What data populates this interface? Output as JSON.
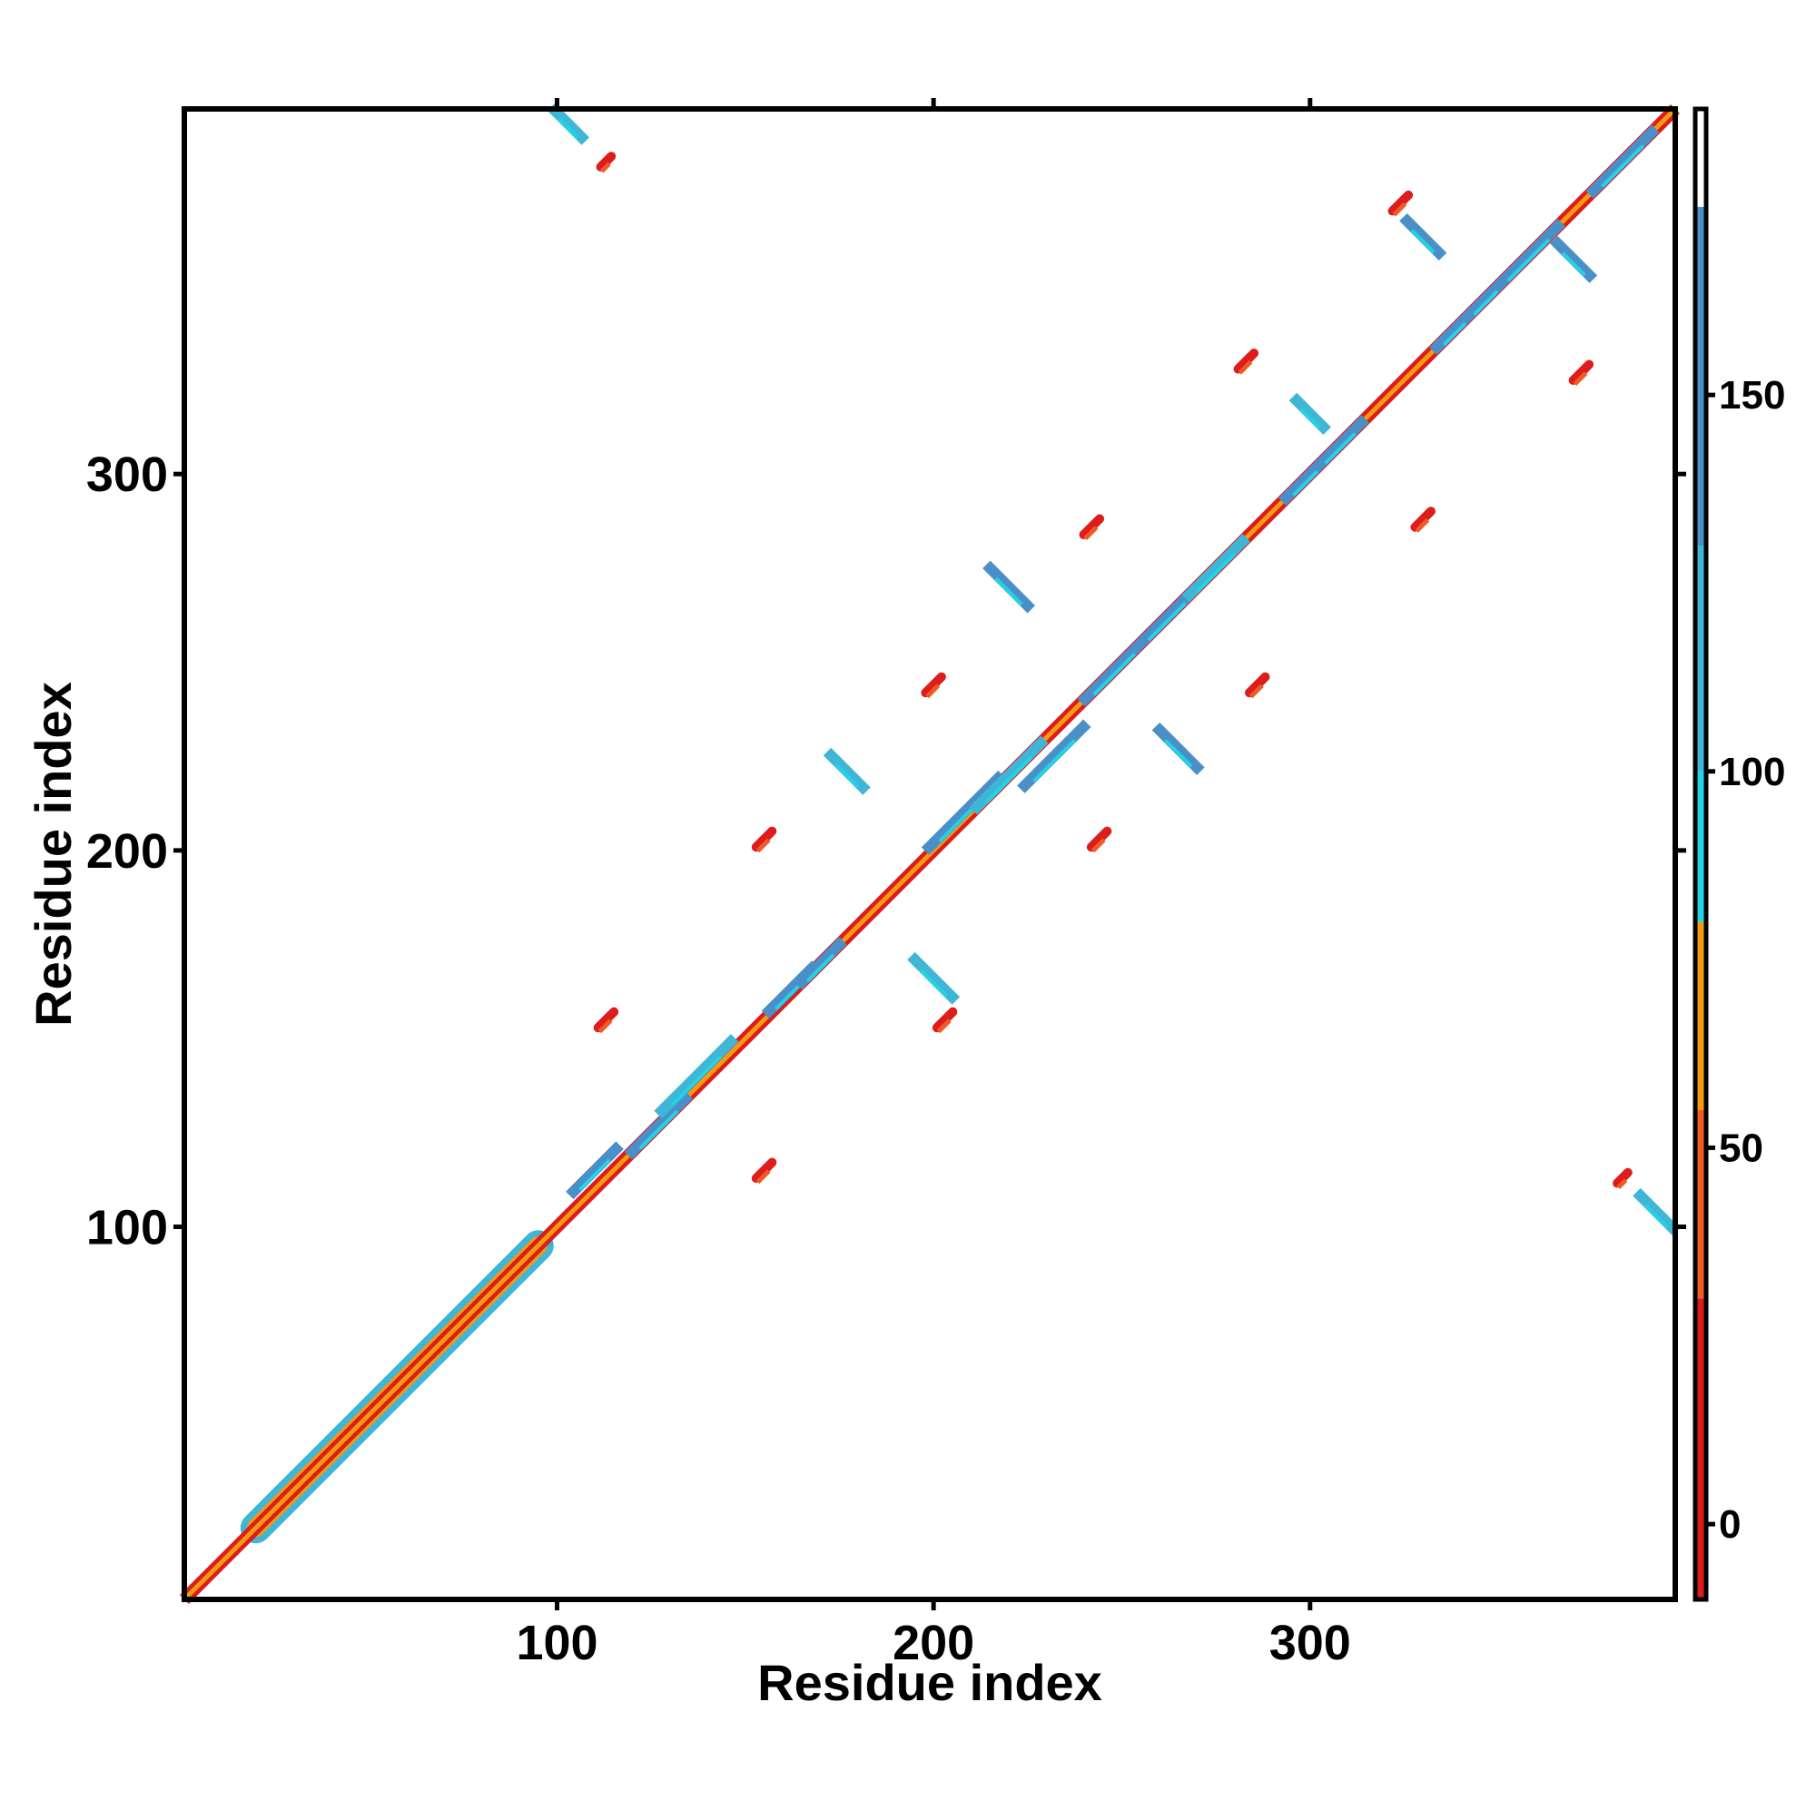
{
  "chart_data": {
    "type": "heatmap",
    "title": "",
    "xlabel": "Residue index",
    "ylabel": "Residue index",
    "xlim": [
      1,
      397
    ],
    "ylim": [
      1,
      397
    ],
    "x_ticks": [
      "100",
      "200",
      "300"
    ],
    "y_ticks": [
      "100",
      "200",
      "300"
    ],
    "grid": false,
    "legend": "colorbar-right",
    "colorbar": {
      "range": [
        -10,
        188
      ],
      "ticks": [
        "0",
        "50",
        "100",
        "150"
      ],
      "bands": [
        {
          "from": -10,
          "to": 30,
          "color": "#dd1c1c"
        },
        {
          "from": 30,
          "to": 55,
          "color": "#f15a24"
        },
        {
          "from": 55,
          "to": 80,
          "color": "#f39c12"
        },
        {
          "from": 80,
          "to": 100,
          "color": "#22d3e6"
        },
        {
          "from": 100,
          "to": 130,
          "color": "#3fb6d6"
        },
        {
          "from": 130,
          "to": 175,
          "color": "#4a8fc8"
        },
        {
          "from": 175,
          "to": 188,
          "color": "#ffffff"
        }
      ]
    },
    "diagonal": {
      "from": 1,
      "to": 397,
      "center_color": "#f39c12",
      "edge_color": "#dd1c1c",
      "helix_region": [
        20,
        95
      ]
    },
    "features": [
      {
        "kind": "antiparallel",
        "center": [
          110,
          115
        ],
        "length": 16,
        "color": "#4a8fc8"
      },
      {
        "kind": "antiparallel",
        "center": [
          127,
          127
        ],
        "length": 20,
        "color": "#4a8fc8"
      },
      {
        "kind": "antiparallel",
        "center": [
          137,
          140
        ],
        "length": 26,
        "color": "#3fb6d6"
      },
      {
        "kind": "antiparallel",
        "center": [
          162,
          163
        ],
        "length": 16,
        "color": "#4a8fc8"
      },
      {
        "kind": "antiparallel",
        "center": [
          170,
          170
        ],
        "length": 14,
        "color": "#4a8fc8"
      },
      {
        "kind": "antiparallel",
        "center": [
          208,
          210
        ],
        "length": 26,
        "color": "#4a8fc8"
      },
      {
        "kind": "antiparallel",
        "center": [
          220,
          220
        ],
        "length": 24,
        "color": "#3fb6d6"
      },
      {
        "kind": "antiparallel",
        "center": [
          232,
          225
        ],
        "length": 22,
        "color": "#4a8fc8"
      },
      {
        "kind": "antiparallel",
        "center": [
          248,
          248
        ],
        "length": 22,
        "color": "#4a8fc8"
      },
      {
        "kind": "antiparallel",
        "center": [
          262,
          262
        ],
        "length": 20,
        "color": "#4a8fc8"
      },
      {
        "kind": "antiparallel",
        "center": [
          275,
          275
        ],
        "length": 20,
        "color": "#3fb6d6"
      },
      {
        "kind": "antiparallel",
        "center": [
          300,
          300
        ],
        "length": 18,
        "color": "#4a8fc8"
      },
      {
        "kind": "antiparallel",
        "center": [
          308,
          308
        ],
        "length": 16,
        "color": "#4a8fc8"
      },
      {
        "kind": "antiparallel",
        "center": [
          340,
          340
        ],
        "length": 18,
        "color": "#4a8fc8"
      },
      {
        "kind": "antiparallel",
        "center": [
          348,
          348
        ],
        "length": 18,
        "color": "#4a8fc8"
      },
      {
        "kind": "antiparallel",
        "center": [
          358,
          358
        ],
        "length": 22,
        "color": "#4a8fc8"
      },
      {
        "kind": "antiparallel",
        "center": [
          383,
          383
        ],
        "length": 22,
        "color": "#4a8fc8"
      },
      {
        "kind": "parallel",
        "center": [
          177,
          221
        ],
        "length": 12,
        "color": "#3fb6d6"
      },
      {
        "kind": "parallel",
        "center": [
          200,
          166
        ],
        "length": 14,
        "color": "#3fb6d6"
      },
      {
        "kind": "parallel",
        "center": [
          220,
          270
        ],
        "length": 14,
        "color": "#4a8fc8"
      },
      {
        "kind": "parallel",
        "center": [
          265,
          227
        ],
        "length": 14,
        "color": "#4a8fc8"
      },
      {
        "kind": "parallel",
        "center": [
          300,
          316
        ],
        "length": 10,
        "color": "#3fb6d6"
      },
      {
        "kind": "parallel",
        "center": [
          330,
          363
        ],
        "length": 12,
        "color": "#4a8fc8"
      },
      {
        "kind": "parallel",
        "center": [
          370,
          357
        ],
        "length": 12,
        "color": "#4a8fc8"
      },
      {
        "kind": "parallel",
        "center": [
          103,
          393
        ],
        "length": 10,
        "color": "#3fb6d6"
      },
      {
        "kind": "parallel",
        "center": [
          392,
          104
        ],
        "length": 12,
        "color": "#3fb6d6"
      },
      {
        "kind": "blob",
        "center": [
          113,
          155
        ],
        "length": 6,
        "color": "#dd1c1c"
      },
      {
        "kind": "blob",
        "center": [
          155,
          115
        ],
        "length": 6,
        "color": "#dd1c1c"
      },
      {
        "kind": "blob",
        "center": [
          155,
          203
        ],
        "length": 6,
        "color": "#dd1c1c"
      },
      {
        "kind": "blob",
        "center": [
          203,
          155
        ],
        "length": 6,
        "color": "#dd1c1c"
      },
      {
        "kind": "blob",
        "center": [
          200,
          244
        ],
        "length": 6,
        "color": "#dd1c1c"
      },
      {
        "kind": "blob",
        "center": [
          244,
          203
        ],
        "length": 6,
        "color": "#dd1c1c"
      },
      {
        "kind": "blob",
        "center": [
          242,
          286
        ],
        "length": 6,
        "color": "#dd1c1c"
      },
      {
        "kind": "blob",
        "center": [
          286,
          244
        ],
        "length": 6,
        "color": "#dd1c1c"
      },
      {
        "kind": "blob",
        "center": [
          283,
          330
        ],
        "length": 6,
        "color": "#dd1c1c"
      },
      {
        "kind": "blob",
        "center": [
          330,
          288
        ],
        "length": 6,
        "color": "#dd1c1c"
      },
      {
        "kind": "blob",
        "center": [
          324,
          372
        ],
        "length": 6,
        "color": "#dd1c1c"
      },
      {
        "kind": "blob",
        "center": [
          372,
          327
        ],
        "length": 6,
        "color": "#dd1c1c"
      },
      {
        "kind": "blob",
        "center": [
          113,
          383
        ],
        "length": 4,
        "color": "#dd1c1c"
      },
      {
        "kind": "blob",
        "center": [
          383,
          113
        ],
        "length": 4,
        "color": "#dd1c1c"
      }
    ]
  }
}
